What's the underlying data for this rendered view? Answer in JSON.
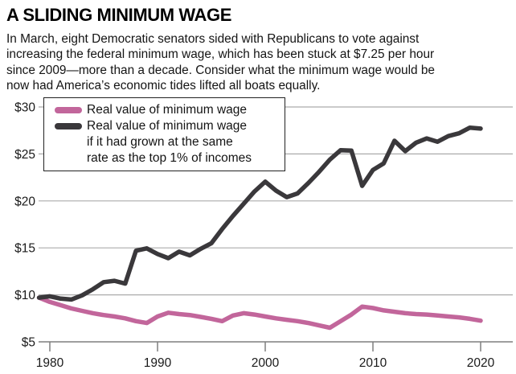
{
  "header": {
    "title": "A SLIDING MINIMUM WAGE",
    "intro_lines": [
      "In March, eight Democratic senators sided with Republicans to vote against",
      "increasing the federal minimum wage, which has been stuck at $7.25 per hour",
      "since 2009—more than a decade. Consider what the minimum wage would be",
      "now had America’s economic tides lifted all boats equally."
    ]
  },
  "chart_data": {
    "type": "line",
    "title": "A SLIDING MINIMUM WAGE",
    "xlabel": "",
    "ylabel": "",
    "xlim": [
      1979,
      2020
    ],
    "ylim": [
      5,
      30
    ],
    "grid": true,
    "legend_position": "top-left",
    "x": [
      1979,
      1980,
      1981,
      1982,
      1983,
      1984,
      1985,
      1986,
      1987,
      1988,
      1989,
      1990,
      1991,
      1992,
      1993,
      1994,
      1995,
      1996,
      1997,
      1998,
      1999,
      2000,
      2001,
      2002,
      2003,
      2004,
      2005,
      2006,
      2007,
      2008,
      2009,
      2010,
      2011,
      2012,
      2013,
      2014,
      2015,
      2016,
      2017,
      2018,
      2019,
      2020
    ],
    "xticks": [
      1980,
      1990,
      2000,
      2010,
      2020
    ],
    "xtick_labels": [
      "1980",
      "1990",
      "2000",
      "2010",
      "2020"
    ],
    "yticks": [
      5,
      10,
      15,
      20,
      25,
      30
    ],
    "ytick_labels": [
      "$5",
      "$10",
      "$15",
      "$20",
      "$25",
      "$30"
    ],
    "series": [
      {
        "name": "Real value of minimum wage",
        "label_lines": [
          "Real value of minimum wage"
        ],
        "color": "#c2669b",
        "values": [
          9.7,
          9.25,
          8.9,
          8.55,
          8.3,
          8.05,
          7.85,
          7.7,
          7.5,
          7.2,
          7.0,
          7.7,
          8.1,
          7.95,
          7.85,
          7.65,
          7.45,
          7.2,
          7.8,
          8.05,
          7.9,
          7.7,
          7.5,
          7.35,
          7.2,
          7.0,
          6.75,
          6.5,
          7.2,
          7.9,
          8.75,
          8.6,
          8.35,
          8.2,
          8.05,
          7.95,
          7.9,
          7.8,
          7.7,
          7.6,
          7.45,
          7.25
        ]
      },
      {
        "name": "Real value of minimum wage if it had grown at the same rate as the top 1% of incomes",
        "label_lines": [
          "Real value of minimum wage",
          "if it had grown at the same",
          "rate as the top 1% of incomes"
        ],
        "color": "#3a383b",
        "values": [
          9.7,
          9.85,
          9.6,
          9.5,
          9.95,
          10.6,
          11.35,
          11.5,
          11.2,
          14.7,
          14.95,
          14.35,
          13.9,
          14.6,
          14.2,
          14.9,
          15.5,
          17.0,
          18.4,
          19.7,
          21.0,
          22.05,
          21.1,
          20.4,
          20.8,
          21.9,
          23.1,
          24.4,
          25.4,
          25.35,
          21.6,
          23.3,
          24.0,
          26.4,
          25.3,
          26.2,
          26.65,
          26.3,
          26.9,
          27.2,
          27.8,
          27.7
        ]
      }
    ],
    "grid_color": "#ababab",
    "axis_color": "#7f7f7f",
    "text_color": "#1a1a1a"
  }
}
